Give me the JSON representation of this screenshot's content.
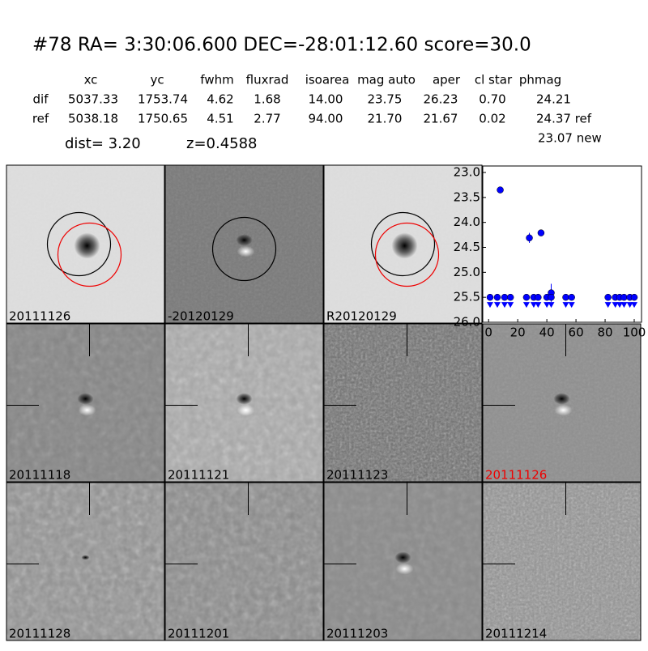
{
  "header": {
    "title": "#78   RA= 3:30:06.600 DEC=-28:01:12.60       score=30.0",
    "dist": "dist=  3.20",
    "z": "z=0.4588"
  },
  "table": {
    "columns": [
      "xc",
      "yc",
      "fwhm",
      "fluxrad",
      "isoarea",
      "mag auto",
      "aper",
      "cl star",
      "phmag"
    ],
    "rows": [
      [
        "dif",
        "5037.33",
        "1753.74",
        "4.62",
        "1.68",
        "14.00",
        "23.75",
        "26.23",
        "0.70",
        "24.21"
      ],
      [
        "ref",
        "5038.18",
        "1750.65",
        "4.51",
        "2.77",
        "94.00",
        "21.70",
        "21.67",
        "0.02",
        "24.37 ref"
      ]
    ],
    "extra": "23.07 new"
  },
  "panels": [
    "20111126",
    "-20120129",
    "R20120129",
    "20111118",
    "20111121",
    "20111123",
    "20111126",
    "20111128",
    "20111201",
    "20111203",
    "20111214"
  ],
  "chart_data": {
    "type": "scatter",
    "xlim": [
      -4,
      105
    ],
    "ylim": [
      26.0,
      22.87
    ],
    "xticks": [
      0,
      20,
      40,
      60,
      80,
      100
    ],
    "yticks": [
      {
        "value": 23,
        "label": "23.0"
      },
      23.5,
      {
        "value": 24,
        "label": "24.0"
      },
      24.5,
      {
        "value": 25,
        "label": "25.0"
      },
      25.5,
      {
        "value": 26,
        "label": "26.0"
      }
    ],
    "series": [
      {
        "color": "#0000ff",
        "marker": "circle",
        "x": [
          8,
          28,
          36,
          43
        ],
        "values": [
          23.35,
          24.31,
          24.21,
          25.41
        ],
        "errors": [
          0.03,
          0.1,
          0.05,
          0.18
        ]
      },
      {
        "color": "#0000ff",
        "marker": "limit",
        "x": [
          1,
          6,
          11,
          15,
          26,
          31,
          34,
          40,
          43,
          53,
          57,
          82,
          87,
          90,
          93,
          97,
          100
        ],
        "values": [
          25.5,
          25.5,
          25.5,
          25.5,
          25.5,
          25.5,
          25.5,
          25.5,
          25.5,
          25.5,
          25.5,
          25.5,
          25.5,
          25.5,
          25.5,
          25.5,
          25.5
        ]
      }
    ]
  }
}
